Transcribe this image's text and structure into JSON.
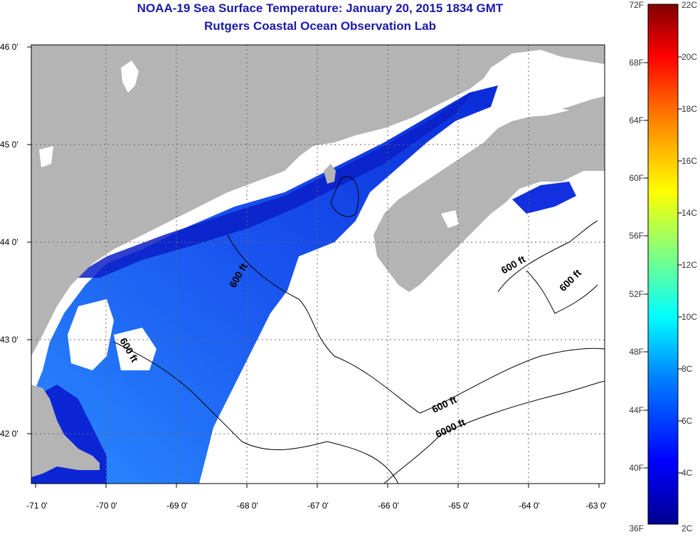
{
  "title": "NOAA-19 Sea Surface Temperature:  January 20, 2015 1834 GMT",
  "subtitle": "Rutgers Coastal Ocean Observation Lab",
  "map": {
    "lat_ticks": [
      "46 0'",
      "45 0'",
      "44 0'",
      "43 0'",
      "42 0'"
    ],
    "lon_ticks": [
      "-71 0'",
      "-70 0'",
      "-69 0'",
      "-68 0'",
      "-67 0'",
      "-66 0'",
      "-65 0'",
      "-64 0'",
      "-63 0'"
    ],
    "contour_labels": [
      "600 ft",
      "600 ft",
      "600 ft",
      "600 ft",
      "600 ft",
      "6000 ft"
    ]
  },
  "colorbar": {
    "fahrenheit_labels": [
      "72F",
      "68F",
      "64F",
      "60F",
      "56F",
      "52F",
      "48F",
      "44F",
      "40F",
      "36F"
    ],
    "celsius_labels": [
      "22C",
      "20C",
      "18C",
      "16C",
      "14C",
      "12C",
      "10C",
      "8C",
      "6C",
      "4C",
      "2C"
    ]
  },
  "colors": {
    "title": "#1a1aa8",
    "land": "#b4b4b4",
    "cloud": "#ffffff",
    "water_warm": "#2a7fff",
    "water_cold": "#0a1fd0"
  }
}
